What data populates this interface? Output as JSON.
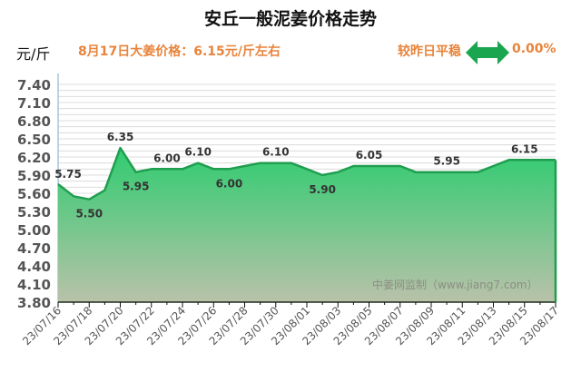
{
  "header": {
    "title": "安丘一般泥姜价格走势",
    "unit": "元/斤",
    "today_price": "8月17日大姜价格：6.15元/斤左右",
    "compare_text": "较昨日平稳",
    "change_pct": "0.00%",
    "arrow_icon": "double-arrow-horizontal",
    "accent_color": "#e8843c",
    "arrow_color": "#1aa64f"
  },
  "watermark": "中姜网监制（www.jiang7.com）",
  "chart_data": {
    "type": "area",
    "title": "安丘一般泥姜价格走势",
    "xlabel": "",
    "ylabel": "元/斤",
    "ylim": [
      3.8,
      7.4
    ],
    "y_ticks": [
      "3.80",
      "4.10",
      "4.40",
      "4.70",
      "5.00",
      "5.30",
      "5.60",
      "5.90",
      "6.20",
      "6.50",
      "6.80",
      "7.10",
      "7.40"
    ],
    "x_tick_labels": [
      "23/07/16",
      "23/07/18",
      "23/07/20",
      "23/07/22",
      "23/07/24",
      "23/07/26",
      "23/07/28",
      "23/07/30",
      "23/08/01",
      "23/08/03",
      "23/08/05",
      "23/08/07",
      "23/08/09",
      "23/08/11",
      "23/08/13",
      "23/08/15",
      "23/08/17"
    ],
    "grid": true,
    "x": [
      "23/07/16",
      "23/07/17",
      "23/07/18",
      "23/07/19",
      "23/07/20",
      "23/07/21",
      "23/07/22",
      "23/07/23",
      "23/07/24",
      "23/07/25",
      "23/07/26",
      "23/07/27",
      "23/07/28",
      "23/07/29",
      "23/07/30",
      "23/07/31",
      "23/08/01",
      "23/08/02",
      "23/08/03",
      "23/08/04",
      "23/08/05",
      "23/08/06",
      "23/08/07",
      "23/08/08",
      "23/08/09",
      "23/08/10",
      "23/08/11",
      "23/08/12",
      "23/08/13",
      "23/08/14",
      "23/08/15",
      "23/08/16",
      "23/08/17"
    ],
    "series": [
      {
        "name": "安丘一般泥姜",
        "values": [
          5.75,
          5.55,
          5.5,
          5.65,
          6.35,
          5.95,
          6.0,
          6.0,
          6.0,
          6.1,
          6.0,
          6.0,
          6.05,
          6.1,
          6.1,
          6.1,
          6.0,
          5.9,
          5.95,
          6.05,
          6.05,
          6.05,
          6.05,
          5.95,
          5.95,
          5.95,
          5.95,
          5.95,
          6.05,
          6.15,
          6.15,
          6.15,
          6.15
        ],
        "line_color": "#1f9e50",
        "fill_top": "#2fcc70",
        "fill_bottom": "#b9c2a9"
      }
    ],
    "data_labels": [
      {
        "index": 0,
        "text": "5.75",
        "pos": "above"
      },
      {
        "index": 2,
        "text": "5.50",
        "pos": "below"
      },
      {
        "index": 4,
        "text": "6.35",
        "pos": "above"
      },
      {
        "index": 5,
        "text": "5.95",
        "pos": "below"
      },
      {
        "index": 7,
        "text": "6.00",
        "pos": "above"
      },
      {
        "index": 9,
        "text": "6.10",
        "pos": "above"
      },
      {
        "index": 11,
        "text": "6.00",
        "pos": "below"
      },
      {
        "index": 14,
        "text": "6.10",
        "pos": "above"
      },
      {
        "index": 17,
        "text": "5.90",
        "pos": "below"
      },
      {
        "index": 20,
        "text": "6.05",
        "pos": "above"
      },
      {
        "index": 25,
        "text": "5.95",
        "pos": "above"
      },
      {
        "index": 30,
        "text": "6.15",
        "pos": "above"
      }
    ]
  }
}
